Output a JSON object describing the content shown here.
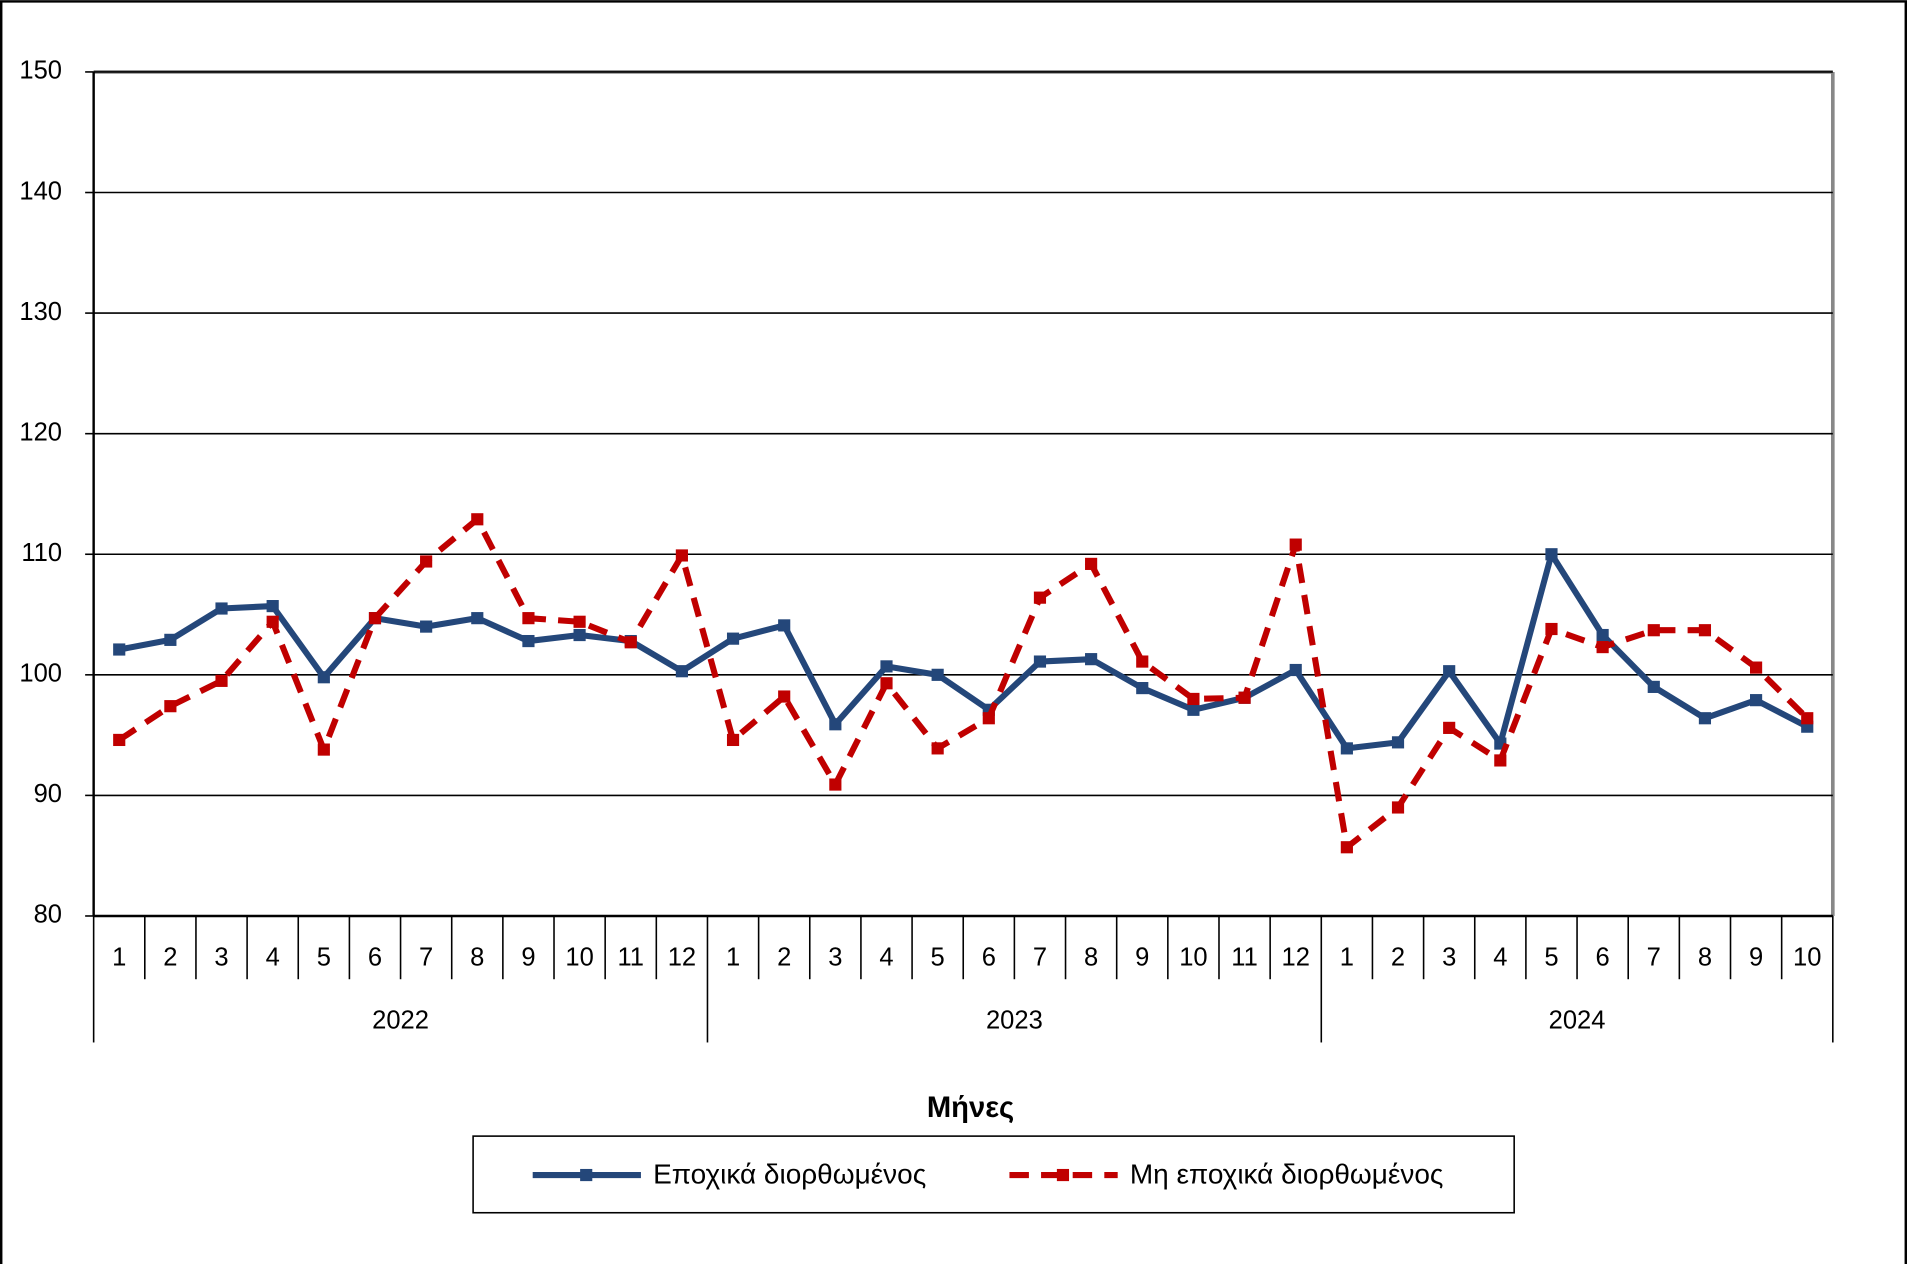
{
  "chart_data": {
    "type": "line",
    "x_label": "Μήνες",
    "category_groups": [
      {
        "label": "2022",
        "categories": [
          "1",
          "2",
          "3",
          "4",
          "5",
          "6",
          "7",
          "8",
          "9",
          "10",
          "11",
          "12"
        ]
      },
      {
        "label": "2023",
        "categories": [
          "1",
          "2",
          "3",
          "4",
          "5",
          "6",
          "7",
          "8",
          "9",
          "10",
          "11",
          "12"
        ]
      },
      {
        "label": "2024",
        "categories": [
          "1",
          "2",
          "3",
          "4",
          "5",
          "6",
          "7",
          "8",
          "9",
          "10"
        ]
      }
    ],
    "series": [
      {
        "name": "Εποχικά διορθωμένος",
        "color": "#24477a",
        "dashed": false,
        "values": [
          102.1,
          102.9,
          105.5,
          105.7,
          99.8,
          104.7,
          104.0,
          104.7,
          102.8,
          103.3,
          102.8,
          100.3,
          103.0,
          104.1,
          95.9,
          100.7,
          100.0,
          97.1,
          101.1,
          101.3,
          98.9,
          97.1,
          98.1,
          100.4,
          93.9,
          94.4,
          100.3,
          94.3,
          110.0,
          103.3,
          99.0,
          96.4,
          97.9,
          95.7
        ]
      },
      {
        "name": "Μη εποχικά διορθωμένος",
        "color": "#c00000",
        "dashed": true,
        "values": [
          94.6,
          97.4,
          99.5,
          104.4,
          93.8,
          104.7,
          109.4,
          112.9,
          104.7,
          104.4,
          102.7,
          109.9,
          94.6,
          98.2,
          90.9,
          99.3,
          93.9,
          96.4,
          106.4,
          109.2,
          101.1,
          98.0,
          98.1,
          110.8,
          85.7,
          89.0,
          95.6,
          92.9,
          103.8,
          102.3,
          103.7,
          103.7,
          100.6,
          96.4
        ]
      }
    ],
    "ylim": [
      80,
      150
    ],
    "yticks": [
      80,
      90,
      100,
      110,
      120,
      130,
      140,
      150
    ],
    "grid": true,
    "legend": "bottom"
  }
}
